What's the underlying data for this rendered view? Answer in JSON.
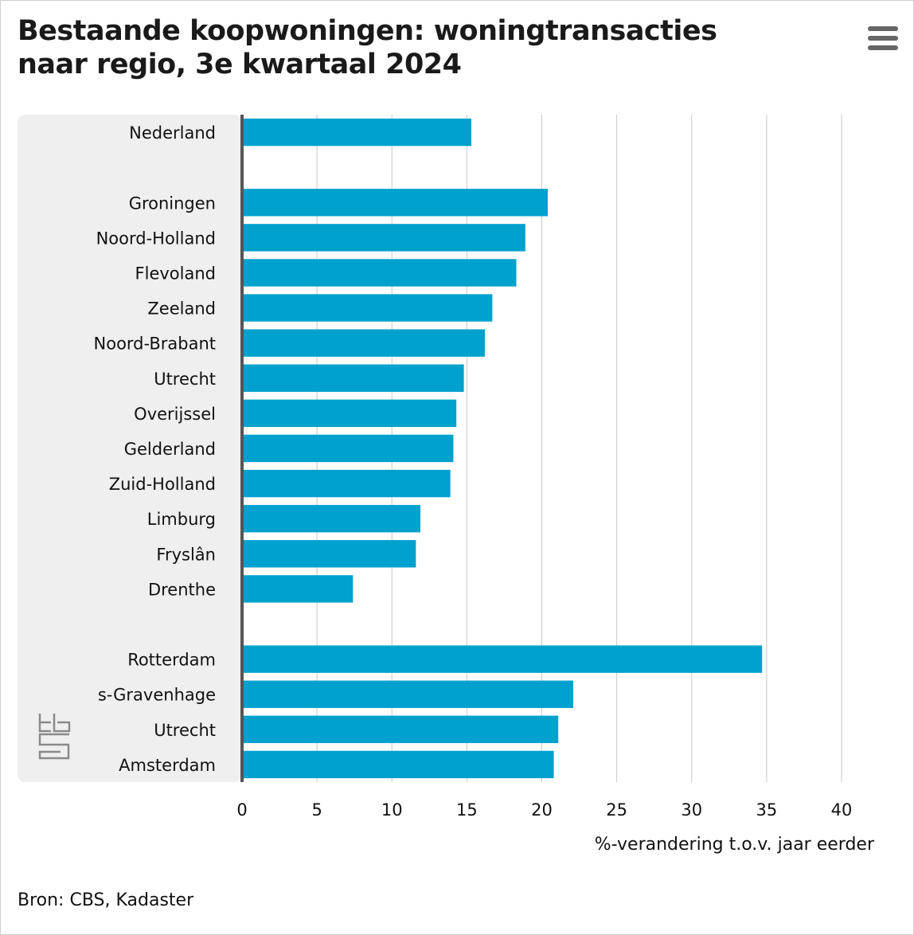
{
  "title_line1": "Bestaande koopwoningen: woningtransacties",
  "title_line2": "naar regio, 3e kwartaal 2024",
  "menu_icon": "hamburger-menu-icon",
  "logo_icon": "cbs-logo-icon",
  "source": "Bron: CBS, Kadaster",
  "colors": {
    "bar": "#00a1cd",
    "axis": "#555555",
    "grid": "#c8c8c8",
    "label_panel": "#efefef"
  },
  "chart_data": {
    "type": "bar",
    "orientation": "horizontal",
    "xlabel": "%-verandering t.o.v. jaar eerder",
    "xlim": [
      0,
      40
    ],
    "xticks": [
      0,
      5,
      10,
      15,
      20,
      25,
      30,
      35,
      40
    ],
    "grid": true,
    "groups": [
      {
        "name": "land",
        "categories": [
          "Nederland"
        ],
        "values": [
          15.3
        ]
      },
      {
        "name": "provincies",
        "categories": [
          "Groningen",
          "Noord-Holland",
          "Flevoland",
          "Zeeland",
          "Noord-Brabant",
          "Utrecht",
          "Overijssel",
          "Gelderland",
          "Zuid-Holland",
          "Limburg",
          "Fryslân",
          "Drenthe"
        ],
        "values": [
          20.4,
          18.9,
          18.3,
          16.7,
          16.2,
          14.8,
          14.3,
          14.1,
          13.9,
          11.9,
          11.6,
          7.4
        ]
      },
      {
        "name": "grote steden",
        "categories": [
          "Rotterdam",
          "s-Gravenhage",
          "Utrecht",
          "Amsterdam"
        ],
        "values": [
          34.7,
          22.1,
          21.1,
          20.8
        ]
      }
    ]
  }
}
